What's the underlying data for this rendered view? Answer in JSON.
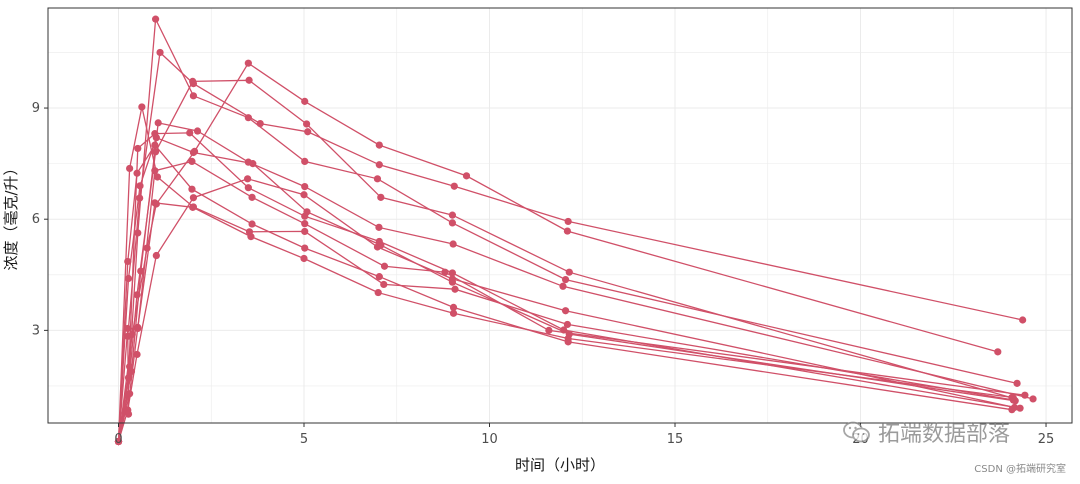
{
  "chart_data": {
    "type": "line",
    "title": "",
    "xlabel": "时间（小时）",
    "ylabel": "浓度（毫克/升）",
    "xlim": [
      -1.9,
      25.7
    ],
    "ylim": [
      0.5,
      11.7
    ],
    "x_ticks": [
      0,
      5,
      10,
      15,
      20,
      25
    ],
    "y_ticks": [
      3,
      6,
      9
    ],
    "grid": true,
    "legend": "none",
    "line_color": "#d05068",
    "series": [
      {
        "x": [
          0.27,
          0.25,
          0.57,
          1.12,
          2.02,
          3.82,
          5.1,
          7.03,
          9.05,
          12.12,
          24.37
        ],
        "y": [
          0.74,
          2.84,
          6.57,
          10.5,
          9.66,
          8.58,
          8.36,
          7.47,
          6.89,
          5.94,
          3.28
        ]
      },
      {
        "x": [
          0.0,
          0.27,
          0.52,
          0.98,
          1.92,
          3.5,
          5.02,
          7.03,
          9.0,
          12.0,
          24.3
        ],
        "y": [
          0.0,
          1.72,
          7.91,
          8.31,
          8.33,
          6.85,
          6.08,
          5.4,
          4.55,
          3.01,
          0.9
        ]
      },
      {
        "x": [
          0.0,
          0.27,
          0.58,
          1.02,
          2.02,
          3.62,
          5.08,
          7.07,
          9.0,
          12.15,
          24.17
        ],
        "y": [
          0.0,
          4.4,
          6.9,
          8.2,
          7.8,
          7.5,
          6.2,
          5.3,
          4.3,
          2.9,
          1.1
        ]
      },
      {
        "x": [
          0.0,
          0.35,
          0.6,
          1.07,
          2.13,
          3.5,
          5.02,
          7.02,
          9.02,
          11.98,
          24.65
        ],
        "y": [
          0.0,
          1.89,
          4.6,
          8.6,
          8.38,
          7.54,
          6.88,
          5.78,
          5.33,
          4.19,
          1.15
        ]
      },
      {
        "x": [
          0.0,
          0.3,
          0.52,
          1.0,
          2.02,
          3.5,
          5.02,
          6.98,
          9.0,
          12.05,
          24.22
        ],
        "y": [
          0.0,
          2.02,
          5.63,
          11.4,
          9.33,
          8.74,
          7.56,
          7.09,
          5.9,
          4.37,
          1.57
        ]
      },
      {
        "x": [
          0.0,
          0.3,
          0.52,
          0.98,
          2.0,
          3.57,
          5.0,
          7.0,
          9.03,
          12.12,
          24.08
        ],
        "y": [
          0.0,
          1.29,
          3.08,
          6.44,
          6.32,
          5.53,
          4.94,
          4.02,
          3.46,
          2.78,
          1.19
        ]
      },
      {
        "x": [
          0.0,
          0.25,
          0.5,
          1.02,
          2.02,
          3.48,
          5.0,
          6.98,
          9.0,
          12.05,
          24.15
        ],
        "y": [
          0.0,
          0.85,
          2.35,
          5.02,
          6.58,
          7.09,
          6.66,
          5.25,
          4.39,
          3.53,
          0.92
        ]
      },
      {
        "x": [
          0.0,
          0.25,
          0.52,
          0.98,
          1.98,
          3.6,
          5.02,
          7.17,
          8.8,
          11.6,
          24.43
        ],
        "y": [
          0.0,
          3.05,
          3.05,
          7.31,
          7.56,
          6.59,
          5.88,
          4.73,
          4.57,
          3.0,
          1.25
        ]
      },
      {
        "x": [
          0.0,
          0.3,
          0.63,
          1.05,
          2.02,
          3.53,
          5.02,
          7.15,
          9.07,
          12.1,
          24.12
        ],
        "y": [
          0.0,
          7.37,
          9.03,
          7.14,
          6.33,
          5.66,
          5.67,
          4.24,
          4.11,
          3.16,
          1.12
        ]
      },
      {
        "x": [
          0.0,
          0.37,
          0.77,
          1.02,
          2.05,
          3.5,
          5.02,
          7.03,
          9.38,
          12.1,
          23.7
        ],
        "y": [
          0.0,
          2.89,
          5.22,
          6.41,
          7.83,
          10.21,
          9.18,
          8.0,
          7.17,
          5.68,
          2.42
        ]
      },
      {
        "x": [
          0.0,
          0.25,
          0.5,
          0.98,
          1.98,
          3.6,
          5.02,
          7.03,
          9.03,
          12.12,
          24.08
        ],
        "y": [
          0.0,
          4.86,
          7.24,
          8.0,
          6.81,
          5.87,
          5.22,
          4.45,
          3.62,
          2.69,
          0.86
        ]
      },
      {
        "x": [
          0.0,
          0.25,
          0.5,
          1.0,
          2.0,
          3.52,
          5.07,
          7.07,
          9.0,
          12.15,
          24.12
        ],
        "y": [
          0.0,
          1.25,
          3.96,
          7.82,
          9.72,
          9.75,
          8.57,
          6.59,
          6.11,
          4.57,
          1.17
        ]
      }
    ]
  },
  "watermark": {
    "brand": "拓端数据部落",
    "credit": "CSDN @拓端研究室"
  }
}
